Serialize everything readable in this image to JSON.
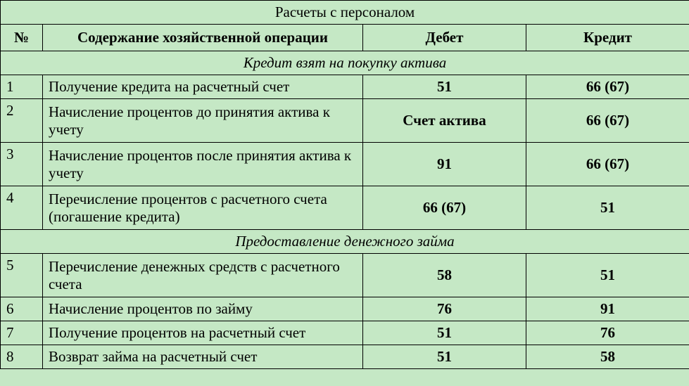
{
  "table": {
    "title": "Расчеты с персоналом",
    "headers": {
      "num": "№",
      "desc": "Содержание хозяйственной операции",
      "debit": "Дебет",
      "credit": "Кредит"
    },
    "sections": [
      {
        "label": "Кредит взят на покупку актива",
        "rows": [
          {
            "num": "1",
            "desc": "Получение кредита на расчетный счет",
            "debit": "51",
            "credit": "66 (67)",
            "tall": false
          },
          {
            "num": "2",
            "desc": "Начисление процентов до принятия актива к учету",
            "debit": "Счет актива",
            "credit": "66 (67)",
            "tall": true
          },
          {
            "num": "3",
            "desc": "Начисление процентов после принятия актива к учету",
            "debit": "91",
            "credit": "66 (67)",
            "tall": true
          },
          {
            "num": "4",
            "desc": "Перечисление процентов с расчетного счета (погашение кредита)",
            "debit": "66 (67)",
            "credit": "51",
            "tall": true
          }
        ]
      },
      {
        "label": "Предоставление денежного займа",
        "rows": [
          {
            "num": "5",
            "desc": "Перечисление денежных средств с расчетного счета",
            "debit": "58",
            "credit": "51",
            "tall": true
          },
          {
            "num": "6",
            "desc": "Начисление процентов по займу",
            "debit": "76",
            "credit": "91",
            "tall": false
          },
          {
            "num": "7",
            "desc": "Получение процентов на расчетный счет",
            "debit": "51",
            "credit": "76",
            "tall": false
          },
          {
            "num": "8",
            "desc": "Возврат займа на расчетный счет",
            "debit": "51",
            "credit": "58",
            "tall": false
          }
        ]
      }
    ],
    "background_color": "#c5e8c5",
    "border_color": "#000000",
    "font_family": "Times New Roman",
    "font_size": 21
  }
}
